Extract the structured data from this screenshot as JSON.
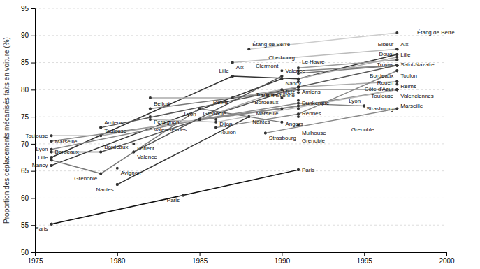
{
  "chart_data": {
    "type": "line",
    "ylabel": "Proportion des déplacements mécanisés faits en voiture (%)",
    "xlim": [
      1975,
      2000
    ],
    "ylim": [
      50,
      95
    ],
    "xticks": [
      1975,
      1980,
      1985,
      1990,
      1995,
      2000
    ],
    "yticks": [
      50,
      55,
      60,
      65,
      70,
      75,
      80,
      85,
      90,
      95
    ],
    "grid": true,
    "marker": "circle",
    "series": [
      {
        "color": "#111111",
        "x": [
          1976,
          1984,
          1991
        ],
        "values": [
          55.2,
          60.5,
          65.2
        ]
      },
      {
        "color": "#333333",
        "x": [
          1976,
          1990
        ],
        "values": [
          66.0,
          82.0
        ]
      },
      {
        "color": "#333333",
        "x": [
          1976,
          1987,
          1991,
          1997
        ],
        "values": [
          67.5,
          82.5,
          82.0,
          86.5
        ]
      },
      {
        "color": "#777777",
        "x": [
          1976,
          1979,
          1985,
          1990
        ],
        "values": [
          67.0,
          64.5,
          76.5,
          74.0
        ]
      },
      {
        "color": "#555555",
        "x": [
          1976,
          1979,
          1991,
          1997
        ],
        "values": [
          68.5,
          68.5,
          80.5,
          84.5
        ]
      },
      {
        "color": "#888888",
        "x": [
          1976,
          1985,
          1991,
          1995
        ],
        "values": [
          69.0,
          74.5,
          77.5,
          77.0
        ]
      },
      {
        "color": "#888888",
        "x": [
          1976,
          1990,
          1997
        ],
        "values": [
          70.5,
          76.5,
          80.0
        ]
      },
      {
        "color": "#aaaaaa",
        "x": [
          1976,
          1979,
          1985,
          1990,
          1997
        ],
        "values": [
          71.5,
          71.5,
          74.5,
          80.0,
          80.0
        ]
      },
      {
        "color": "#555555",
        "x": [
          1979,
          1991
        ],
        "values": [
          73.0,
          80.5
        ]
      },
      {
        "color": "#333333",
        "x": [
          1980,
          1988
        ],
        "values": [
          62.5,
          75.0
        ]
      },
      {
        "color": "#aaaaaa",
        "x": [
          1982,
          1987,
          1991,
          1997
        ],
        "values": [
          78.5,
          78.5,
          80.5,
          81.5
        ]
      },
      {
        "color": "#777777",
        "x": [
          1982,
          1991
        ],
        "values": [
          76.5,
          80.0
        ]
      },
      {
        "color": "#bbbbbb",
        "x": [
          1982,
          1986,
          1997
        ],
        "values": [
          74.5,
          74.0,
          80.0
        ]
      },
      {
        "color": "#555555",
        "x": [
          1981,
          1990
        ],
        "values": [
          68.5,
          82.5
        ]
      },
      {
        "color": "#888888",
        "x": [
          1985,
          1991
        ],
        "values": [
          74.5,
          77.0
        ]
      },
      {
        "color": "#888888",
        "x": [
          1986,
          1991,
          1997
        ],
        "values": [
          73.0,
          75.5,
          83.5
        ]
      },
      {
        "color": "#cccccc",
        "x": [
          1988,
          1997
        ],
        "values": [
          87.5,
          90.5
        ]
      },
      {
        "color": "#bbbbbb",
        "x": [
          1987,
          1997
        ],
        "values": [
          85.0,
          87.5
        ]
      },
      {
        "color": "#888888",
        "x": [
          1989,
          1997
        ],
        "values": [
          72.0,
          76.5
        ]
      },
      {
        "color": "#888888",
        "x": [
          1991,
          1997
        ],
        "values": [
          83.5,
          84.5
        ]
      },
      {
        "color": "#777777",
        "x": [
          1991,
          1997
        ],
        "values": [
          83.0,
          84.5
        ]
      },
      {
        "color": "#999999",
        "x": [
          1991,
          1997
        ],
        "values": [
          84.0,
          85.5
        ]
      },
      {
        "color": "#aaaaaa",
        "x": [
          1991,
          1997
        ],
        "values": [
          82.0,
          86.0
        ]
      },
      {
        "type": "scatter",
        "color": "#333333",
        "x": [
          1976,
          1984,
          1991,
          1976,
          1990,
          1976,
          1987,
          1991,
          1997,
          1976,
          1979,
          1985,
          1990,
          1976,
          1979,
          1991,
          1997,
          1976,
          1985,
          1991,
          1995,
          1976,
          1990,
          1997,
          1976,
          1979,
          1985,
          1990,
          1997,
          1979,
          1991,
          1980,
          1988,
          1982,
          1987,
          1991,
          1997,
          1982,
          1991,
          1982,
          1986,
          1997,
          1981,
          1990,
          1985,
          1991,
          1986,
          1991,
          1997,
          1988,
          1997,
          1987,
          1997,
          1989,
          1997,
          1991,
          1997,
          1991,
          1997,
          1991,
          1997,
          1991,
          1997,
          1980,
          1982,
          1981,
          1986,
          1990,
          1990,
          1991,
          1991,
          1991,
          1991,
          1991,
          1991,
          1997,
          1997,
          1997,
          1997,
          1997,
          1997,
          1995,
          1997
        ],
        "values": [
          55.2,
          60.5,
          65.2,
          66.0,
          82.0,
          67.5,
          82.5,
          82.0,
          86.5,
          67.0,
          64.5,
          76.5,
          74.0,
          68.5,
          68.5,
          80.5,
          84.5,
          69.0,
          74.5,
          77.5,
          77.0,
          70.5,
          76.5,
          80.0,
          71.5,
          71.5,
          74.5,
          80.0,
          80.0,
          73.0,
          80.5,
          62.5,
          75.0,
          78.5,
          78.5,
          80.5,
          81.5,
          76.5,
          80.0,
          74.5,
          74.0,
          80.0,
          68.5,
          82.5,
          74.5,
          77.0,
          73.0,
          75.5,
          83.5,
          87.5,
          90.5,
          85.0,
          87.5,
          72.0,
          76.5,
          83.5,
          84.5,
          83.0,
          84.5,
          84.0,
          85.5,
          82.0,
          86.0,
          65.5,
          75.0,
          70.0,
          74.5,
          83.5,
          78.5,
          81.5,
          79.5,
          76.5,
          78.0,
          75.0,
          73.5,
          87.5,
          85.5,
          83.5,
          81.5,
          81.0,
          80.0,
          77.0,
          84.5
        ]
      }
    ],
    "annotations": [
      {
        "text": "Paris",
        "x": 1976,
        "y": 55.2
      },
      {
        "text": "Paris",
        "x": 1984,
        "y": 60.5
      },
      {
        "text": "Paris",
        "x": 1991,
        "y": 65.2
      },
      {
        "text": "Nantes",
        "x": 1980,
        "y": 62.5
      },
      {
        "text": "Avignon",
        "x": 1980,
        "y": 65.5
      },
      {
        "text": "Grenoble",
        "x": 1979,
        "y": 64.5
      },
      {
        "text": "Nancy",
        "x": 1976,
        "y": 66.0
      },
      {
        "text": "Lille",
        "x": 1976,
        "y": 67.5
      },
      {
        "text": "Lyon",
        "x": 1976,
        "y": 69.0
      },
      {
        "text": "Marseille",
        "x": 1976,
        "y": 70.5
      },
      {
        "text": "Bordeaux",
        "x": 1976,
        "y": 68.5
      },
      {
        "text": "Toulouse",
        "x": 1976,
        "y": 71.5
      },
      {
        "text": "Amiens",
        "x": 1979,
        "y": 73.0
      },
      {
        "text": "Toulouse",
        "x": 1979,
        "y": 71.5
      },
      {
        "text": "Bordeaux",
        "x": 1979,
        "y": 68.5
      },
      {
        "text": "Belfort",
        "x": 1982,
        "y": 76.5
      },
      {
        "text": "Perpignan",
        "x": 1982,
        "y": 75.0
      },
      {
        "text": "Valenciennes",
        "x": 1982,
        "y": 74.5
      },
      {
        "text": "Lorient",
        "x": 1981,
        "y": 70.0
      },
      {
        "text": "Valence",
        "x": 1981,
        "y": 68.5
      },
      {
        "text": "Reims",
        "x": 1987,
        "y": 78.5
      },
      {
        "text": "Grenoble",
        "x": 1985,
        "y": 76.5
      },
      {
        "text": "Lyon",
        "x": 1985,
        "y": 74.5
      },
      {
        "text": "Dijon",
        "x": 1986,
        "y": 74.5
      },
      {
        "text": "Toulon",
        "x": 1986,
        "y": 73.0
      },
      {
        "text": "Lille",
        "x": 1987,
        "y": 82.5
      },
      {
        "text": "Aix",
        "x": 1987,
        "y": 85.0
      },
      {
        "text": "Étang de Berre",
        "x": 1988,
        "y": 87.5
      },
      {
        "text": "Nancy",
        "x": 1990,
        "y": 82.0
      },
      {
        "text": "Valence",
        "x": 1990,
        "y": 82.5
      },
      {
        "text": "Clermont",
        "x": 1990,
        "y": 83.5
      },
      {
        "text": "Toulouse",
        "x": 1990,
        "y": 80.0
      },
      {
        "text": "Bordeaux",
        "x": 1990,
        "y": 78.5
      },
      {
        "text": "Marseille",
        "x": 1990,
        "y": 76.5
      },
      {
        "text": "Nantes",
        "x": 1988,
        "y": 75.0
      },
      {
        "text": "Angers",
        "x": 1990,
        "y": 74.5
      },
      {
        "text": "Strasbourg",
        "x": 1989,
        "y": 72.0
      },
      {
        "text": "Amiens",
        "x": 1991,
        "y": 80.5
      },
      {
        "text": "Metz",
        "x": 1991,
        "y": 81.5
      },
      {
        "text": "Le Havre",
        "x": 1991,
        "y": 83.0
      },
      {
        "text": "Cherbourg",
        "x": 1991,
        "y": 84.0
      },
      {
        "text": "Dunkerque",
        "x": 1991,
        "y": 79.5
      },
      {
        "text": "Rennes",
        "x": 1991,
        "y": 76.5
      },
      {
        "text": "Saint-Étienne",
        "x": 1991,
        "y": 78.0
      },
      {
        "text": "Mulhouse",
        "x": 1991,
        "y": 75.0
      },
      {
        "text": "Grenoble",
        "x": 1991,
        "y": 73.5
      },
      {
        "text": "Étang de Berre",
        "x": 1998,
        "y": 90.5
      },
      {
        "text": "Aix",
        "x": 1997,
        "y": 87.5
      },
      {
        "text": "Elbeuf",
        "x": 1997,
        "y": 87.5
      },
      {
        "text": "Lille",
        "x": 1997,
        "y": 86.5
      },
      {
        "text": "Saint-Nazaire",
        "x": 1997,
        "y": 85.5
      },
      {
        "text": "Troyes",
        "x": 1997,
        "y": 85.5
      },
      {
        "text": "Toulon",
        "x": 1997,
        "y": 83.5
      },
      {
        "text": "Bordeaux",
        "x": 1997,
        "y": 84.5
      },
      {
        "text": "Douai",
        "x": 1997,
        "y": 84.5
      },
      {
        "text": "Rouen",
        "x": 1997,
        "y": 83.5
      },
      {
        "text": "Reims",
        "x": 1997,
        "y": 81.5
      },
      {
        "text": "Côte d'Azur",
        "x": 1997,
        "y": 81.0
      },
      {
        "text": "Valenciennes",
        "x": 1997,
        "y": 80.0
      },
      {
        "text": "Toulouse",
        "x": 1997,
        "y": 80.0
      },
      {
        "text": "Marseille",
        "x": 1997,
        "y": 80.0
      },
      {
        "text": "Lyon",
        "x": 1995,
        "y": 77.0
      },
      {
        "text": "Strasbourg",
        "x": 1997,
        "y": 76.5
      },
      {
        "text": "Grenoble",
        "x": 1994,
        "y": 73.5
      }
    ]
  }
}
